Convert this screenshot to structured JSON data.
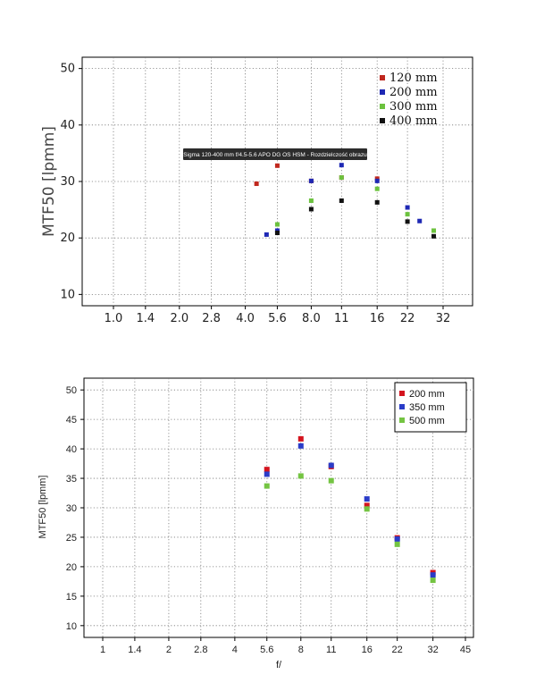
{
  "chart_data": [
    {
      "type": "scatter",
      "xlabel": "",
      "ylabel": "MTF50 [lpmm]",
      "ylim": [
        8,
        52
      ],
      "yticks": [
        10,
        20,
        30,
        40,
        50
      ],
      "x_tick_labels": [
        "1.0",
        "1.4",
        "2.0",
        "2.8",
        "4.0",
        "5.6",
        "8.0",
        "11",
        "16",
        "22",
        "32"
      ],
      "x_scale": "log2 of f-number",
      "grid": true,
      "legend_position": "top-right",
      "annotation": "Sigma 120-400 mm f/4.5-5.6 APO DG OS HSM - Rozdzielczość obrazu",
      "series": [
        {
          "name": "120 mm",
          "color": "#c0281e",
          "points": [
            [
              4.5,
              29.6
            ],
            [
              5.6,
              32.8
            ],
            [
              8.0,
              30.1
            ],
            [
              11,
              30.7
            ],
            [
              16,
              30.5
            ]
          ]
        },
        {
          "name": "200 mm",
          "color": "#1e28b4",
          "points": [
            [
              5.0,
              20.6
            ],
            [
              5.6,
              21.3
            ],
            [
              8.0,
              30.1
            ],
            [
              11,
              32.9
            ],
            [
              16,
              30.1
            ],
            [
              22,
              25.4
            ],
            [
              25,
              23.0
            ]
          ]
        },
        {
          "name": "300 mm",
          "color": "#6cc23e",
          "points": [
            [
              5.6,
              22.4
            ],
            [
              8.0,
              26.6
            ],
            [
              11,
              30.7
            ],
            [
              16,
              28.7
            ],
            [
              22,
              24.2
            ],
            [
              29,
              21.3
            ]
          ]
        },
        {
          "name": "400 mm",
          "color": "#111111",
          "points": [
            [
              5.6,
              20.9
            ],
            [
              8.0,
              25.1
            ],
            [
              11,
              26.6
            ],
            [
              16,
              26.3
            ],
            [
              22,
              22.9
            ],
            [
              29,
              20.3
            ]
          ]
        }
      ]
    },
    {
      "type": "scatter",
      "xlabel": "f/",
      "ylabel": "MTF50 [lpmm]",
      "ylim": [
        8,
        52
      ],
      "yticks": [
        10,
        15,
        20,
        25,
        30,
        35,
        40,
        45,
        50
      ],
      "x_tick_labels": [
        "1",
        "1.4",
        "2",
        "2.8",
        "4",
        "5.6",
        "8",
        "11",
        "16",
        "22",
        "32",
        "45"
      ],
      "x_scale": "log2 of f-number",
      "grid": true,
      "legend_position": "top-right",
      "series": [
        {
          "name": "200 mm",
          "color": "#d4141e",
          "points": [
            [
              5.6,
              36.5
            ],
            [
              8,
              41.7
            ],
            [
              11,
              37.0
            ],
            [
              16,
              30.4
            ],
            [
              22,
              24.9
            ],
            [
              32,
              19.0
            ]
          ]
        },
        {
          "name": "350 mm",
          "color": "#2a3cc8",
          "points": [
            [
              5.6,
              35.7
            ],
            [
              8,
              40.5
            ],
            [
              11,
              37.2
            ],
            [
              16,
              31.5
            ],
            [
              22,
              24.7
            ],
            [
              32,
              18.6
            ]
          ]
        },
        {
          "name": "500 mm",
          "color": "#74c442",
          "points": [
            [
              5.6,
              33.7
            ],
            [
              8,
              35.4
            ],
            [
              11,
              34.6
            ],
            [
              16,
              29.8
            ],
            [
              22,
              23.8
            ],
            [
              32,
              17.7
            ]
          ]
        }
      ]
    }
  ]
}
